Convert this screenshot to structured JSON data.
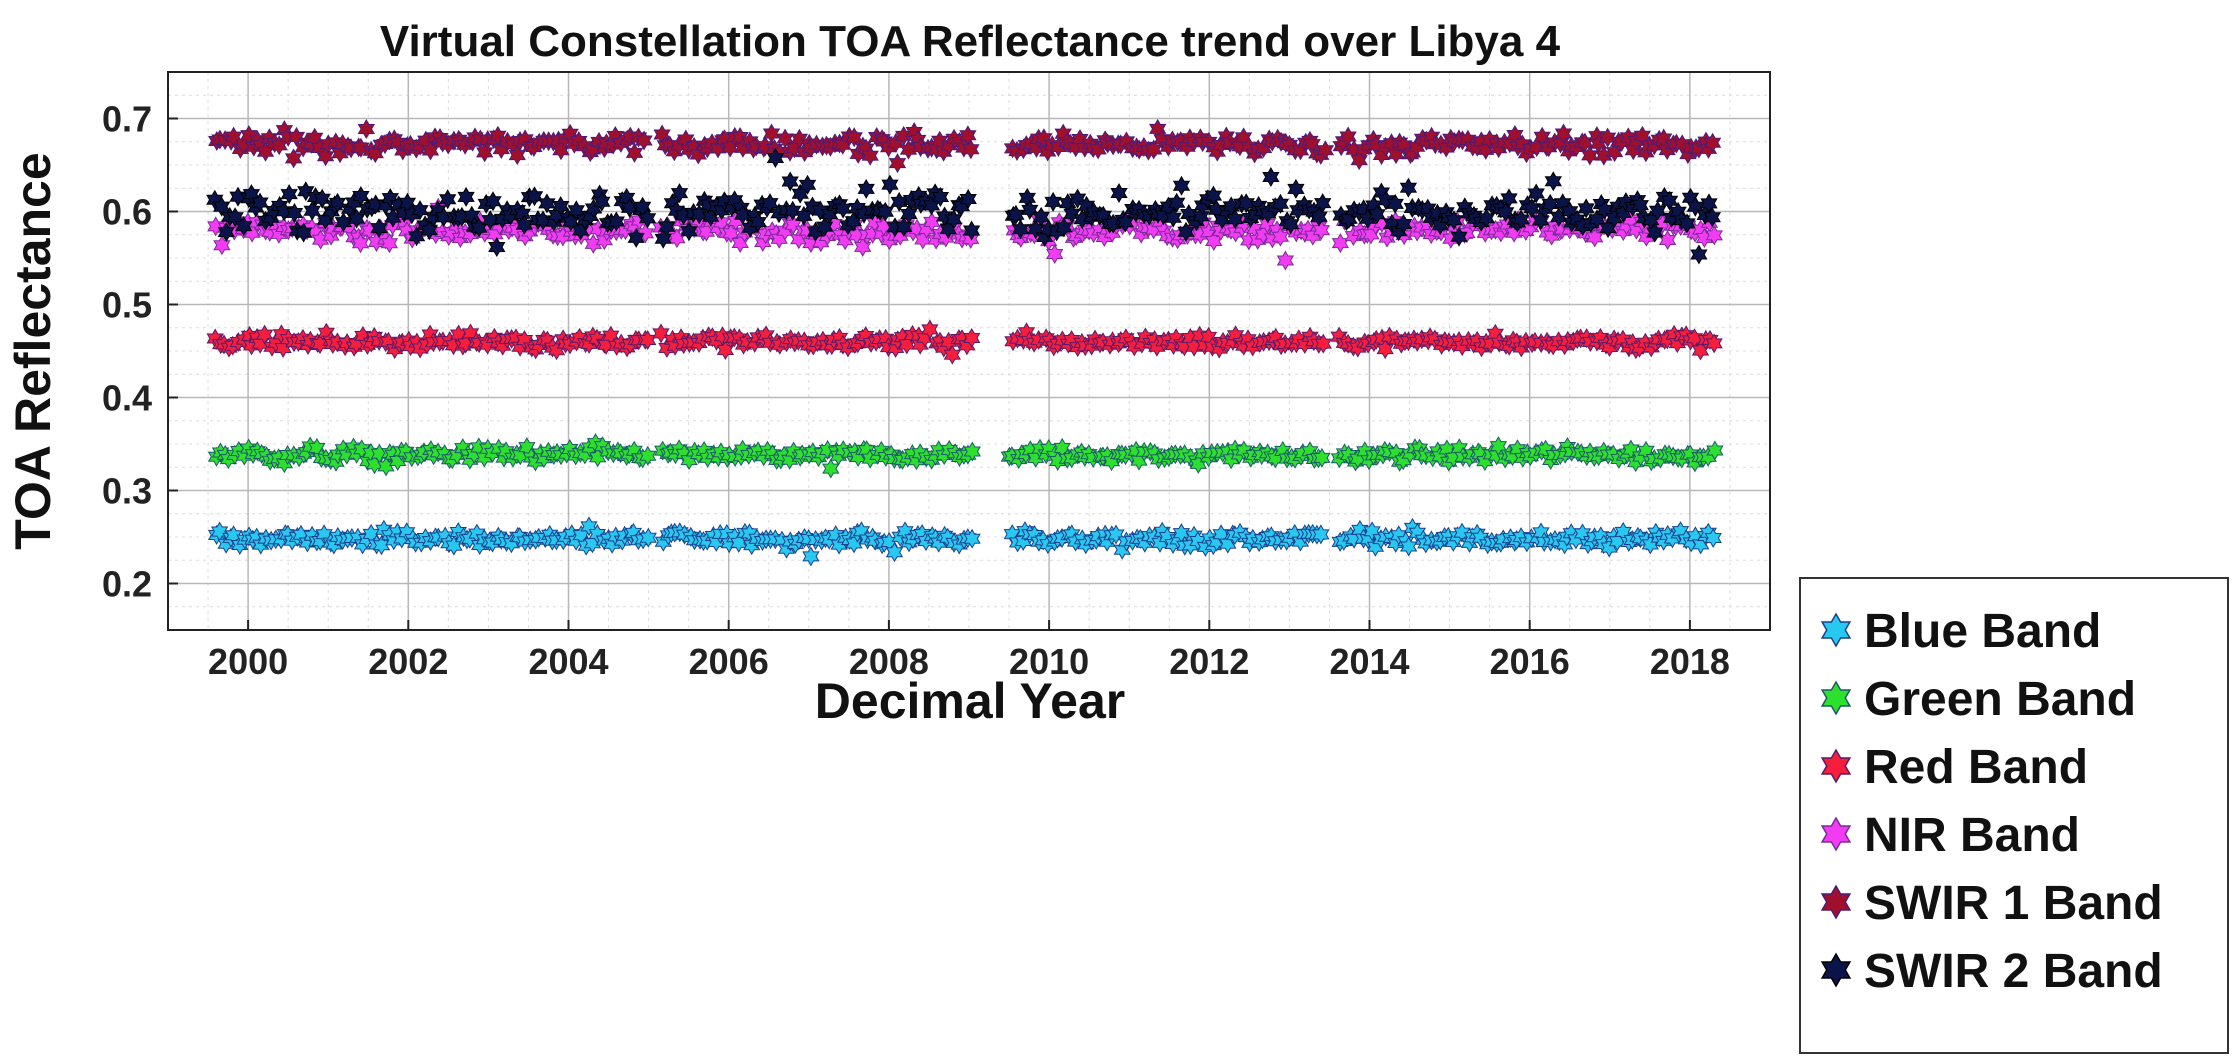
{
  "chart_data": {
    "type": "scatter",
    "title": "Virtual Constellation TOA Reflectance trend over Libya 4",
    "xlabel": "Decimal Year",
    "ylabel": "TOA Reflectance",
    "xlim": [
      1999.0,
      2019.0
    ],
    "ylim": [
      0.15,
      0.75
    ],
    "xticks": [
      2000,
      2002,
      2004,
      2006,
      2008,
      2010,
      2012,
      2014,
      2016,
      2018
    ],
    "yticks": [
      0.2,
      0.3,
      0.4,
      0.5,
      0.6,
      0.7
    ],
    "grid": true,
    "legend_position": "outside-right-bottom",
    "x_start": 1999.6,
    "x_end": 2018.3,
    "data_gaps": [
      [
        2005.0,
        2005.15
      ],
      [
        2009.05,
        2009.5
      ],
      [
        2013.45,
        2013.6
      ]
    ],
    "marker": "hexagram",
    "series": [
      {
        "name": "Blue Band",
        "color": "#29C8F0",
        "edge": "#1a3f8c",
        "mean": 0.248,
        "spread": 0.004,
        "samples": 330
      },
      {
        "name": "Green Band",
        "color": "#2EE02E",
        "edge": "#1c5a6a",
        "mean": 0.338,
        "spread": 0.004,
        "samples": 330
      },
      {
        "name": "Red Band",
        "color": "#F51E3C",
        "edge": "#5a1a6a",
        "mean": 0.46,
        "spread": 0.004,
        "samples": 330
      },
      {
        "name": "NIR Band",
        "color": "#F23CF2",
        "edge": "#7a2a9a",
        "mean": 0.58,
        "spread": 0.006,
        "samples": 330
      },
      {
        "name": "SWIR 1 Band",
        "color": "#A0102C",
        "edge": "#4a1a7a",
        "mean": 0.672,
        "spread": 0.006,
        "samples": 330
      },
      {
        "name": "SWIR 2 Band",
        "color": "#0B1448",
        "edge": "#000000",
        "mean": 0.6,
        "spread": 0.012,
        "samples": 330
      }
    ]
  }
}
